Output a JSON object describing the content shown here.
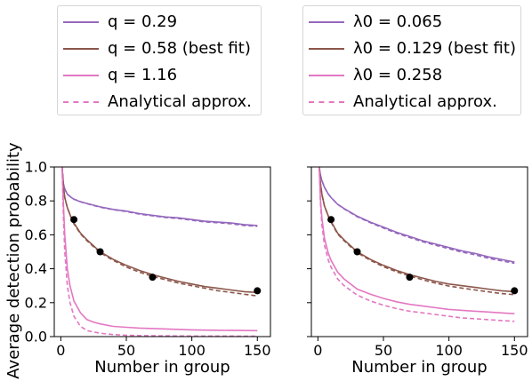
{
  "chart_data": [
    {
      "type": "line",
      "panel": "left",
      "xlabel": "Number in group",
      "ylabel": "Average detection probability",
      "xlim": [
        -5,
        160
      ],
      "ylim": [
        0,
        1.0
      ],
      "xticks": [
        0,
        50,
        100,
        150
      ],
      "yticks": [
        0.0,
        0.2,
        0.4,
        0.6,
        0.8,
        1.0
      ],
      "grid": false,
      "legend_placement": "above",
      "series": [
        {
          "name": "q = 0.29",
          "style": "solid",
          "color": "#9467bd",
          "x": [
            1,
            2,
            3,
            5,
            8,
            10,
            15,
            20,
            30,
            40,
            50,
            60,
            70,
            80,
            90,
            100,
            110,
            120,
            130,
            140,
            150
          ],
          "y": [
            1.0,
            0.9,
            0.87,
            0.84,
            0.82,
            0.81,
            0.795,
            0.785,
            0.765,
            0.75,
            0.74,
            0.725,
            0.715,
            0.705,
            0.7,
            0.69,
            0.68,
            0.675,
            0.67,
            0.66,
            0.655
          ]
        },
        {
          "name": "q = 0.58 (best fit)",
          "style": "solid",
          "color": "#8c564b",
          "x": [
            1,
            2,
            3,
            5,
            8,
            10,
            15,
            20,
            30,
            40,
            50,
            60,
            70,
            80,
            90,
            100,
            110,
            120,
            130,
            140,
            150
          ],
          "y": [
            1.0,
            0.88,
            0.82,
            0.76,
            0.7,
            0.67,
            0.61,
            0.57,
            0.5,
            0.455,
            0.42,
            0.39,
            0.365,
            0.345,
            0.325,
            0.31,
            0.295,
            0.285,
            0.275,
            0.265,
            0.26
          ]
        },
        {
          "name": "q = 1.16",
          "style": "solid",
          "color": "#e377c2",
          "x": [
            1,
            2,
            3,
            5,
            7,
            10,
            15,
            20,
            25,
            30,
            40,
            50,
            60,
            80,
            100,
            120,
            150
          ],
          "y": [
            1.0,
            0.78,
            0.6,
            0.4,
            0.3,
            0.21,
            0.14,
            0.1,
            0.085,
            0.075,
            0.06,
            0.055,
            0.05,
            0.045,
            0.04,
            0.037,
            0.035
          ]
        },
        {
          "name": "Analytical approx.",
          "style": "dashed",
          "color": "#9467bd",
          "legend": false,
          "x": [
            1,
            2,
            3,
            5,
            8,
            10,
            15,
            20,
            30,
            40,
            50,
            60,
            70,
            80,
            90,
            100,
            110,
            120,
            130,
            140,
            150
          ],
          "y": [
            1.0,
            0.9,
            0.87,
            0.84,
            0.82,
            0.81,
            0.795,
            0.783,
            0.763,
            0.748,
            0.737,
            0.722,
            0.712,
            0.702,
            0.696,
            0.686,
            0.676,
            0.671,
            0.665,
            0.655,
            0.65
          ]
        },
        {
          "name": "Analytical approx.",
          "style": "dashed",
          "color": "#8c564b",
          "legend": false,
          "x": [
            1,
            2,
            3,
            5,
            8,
            10,
            15,
            20,
            30,
            40,
            50,
            60,
            70,
            80,
            90,
            100,
            110,
            120,
            130,
            140,
            150
          ],
          "y": [
            1.0,
            0.88,
            0.82,
            0.76,
            0.7,
            0.665,
            0.605,
            0.565,
            0.495,
            0.45,
            0.41,
            0.38,
            0.355,
            0.335,
            0.315,
            0.3,
            0.285,
            0.27,
            0.26,
            0.25,
            0.24
          ]
        },
        {
          "name": "Analytical approx.",
          "style": "dashed",
          "color": "#e377c2",
          "legend": true,
          "x": [
            1,
            2,
            3,
            5,
            7,
            10,
            15,
            20,
            30,
            40,
            50,
            60,
            80,
            100,
            120,
            150
          ],
          "y": [
            1.0,
            0.7,
            0.5,
            0.3,
            0.2,
            0.12,
            0.06,
            0.035,
            0.02,
            0.012,
            0.008,
            0.006,
            0.004,
            0.003,
            0.003,
            0.002
          ]
        }
      ],
      "points": {
        "x": [
          10,
          30,
          70,
          150
        ],
        "y": [
          0.69,
          0.5,
          0.35,
          0.27
        ],
        "color": "#000000"
      }
    },
    {
      "type": "line",
      "panel": "right",
      "xlabel": "Number in group",
      "ylabel": "",
      "xlim": [
        -5,
        160
      ],
      "ylim": [
        0,
        1.0
      ],
      "xticks": [
        0,
        50,
        100,
        150
      ],
      "yticks": [
        0.0,
        0.2,
        0.4,
        0.6,
        0.8,
        1.0
      ],
      "ytick_labels": false,
      "grid": false,
      "legend_placement": "above",
      "series": [
        {
          "name": "λ0 = 0.065",
          "style": "solid",
          "color": "#9467bd",
          "x": [
            1,
            2,
            3,
            5,
            8,
            10,
            15,
            20,
            30,
            40,
            50,
            60,
            70,
            80,
            90,
            100,
            110,
            120,
            130,
            140,
            150
          ],
          "y": [
            1.0,
            0.95,
            0.92,
            0.88,
            0.84,
            0.82,
            0.78,
            0.755,
            0.71,
            0.675,
            0.645,
            0.615,
            0.59,
            0.565,
            0.545,
            0.525,
            0.505,
            0.49,
            0.47,
            0.455,
            0.44
          ]
        },
        {
          "name": "λ0 = 0.129 (best fit)",
          "style": "solid",
          "color": "#8c564b",
          "x": [
            1,
            2,
            3,
            5,
            8,
            10,
            15,
            20,
            30,
            40,
            50,
            60,
            70,
            80,
            90,
            100,
            110,
            120,
            130,
            140,
            150
          ],
          "y": [
            1.0,
            0.9,
            0.84,
            0.77,
            0.71,
            0.68,
            0.61,
            0.57,
            0.5,
            0.455,
            0.42,
            0.39,
            0.365,
            0.345,
            0.325,
            0.31,
            0.3,
            0.29,
            0.28,
            0.27,
            0.265
          ]
        },
        {
          "name": "λ0 = 0.258",
          "style": "solid",
          "color": "#e377c2",
          "x": [
            1,
            2,
            3,
            5,
            8,
            10,
            15,
            20,
            30,
            40,
            50,
            60,
            70,
            80,
            90,
            100,
            110,
            120,
            130,
            140,
            150
          ],
          "y": [
            1.0,
            0.8,
            0.7,
            0.58,
            0.49,
            0.45,
            0.38,
            0.34,
            0.28,
            0.25,
            0.225,
            0.205,
            0.19,
            0.18,
            0.17,
            0.16,
            0.155,
            0.15,
            0.145,
            0.14,
            0.135
          ]
        },
        {
          "name": "Analytical approx.",
          "style": "dashed",
          "color": "#9467bd",
          "legend": false,
          "x": [
            1,
            2,
            3,
            5,
            8,
            10,
            15,
            20,
            30,
            40,
            50,
            60,
            70,
            80,
            90,
            100,
            110,
            120,
            130,
            140,
            150
          ],
          "y": [
            1.0,
            0.95,
            0.92,
            0.88,
            0.84,
            0.82,
            0.78,
            0.753,
            0.707,
            0.671,
            0.64,
            0.61,
            0.584,
            0.559,
            0.538,
            0.518,
            0.498,
            0.482,
            0.462,
            0.447,
            0.432
          ]
        },
        {
          "name": "Analytical approx.",
          "style": "dashed",
          "color": "#8c564b",
          "legend": false,
          "x": [
            1,
            2,
            3,
            5,
            8,
            10,
            15,
            20,
            30,
            40,
            50,
            60,
            70,
            80,
            90,
            100,
            110,
            120,
            130,
            140,
            150
          ],
          "y": [
            1.0,
            0.9,
            0.84,
            0.77,
            0.71,
            0.675,
            0.605,
            0.565,
            0.495,
            0.45,
            0.412,
            0.382,
            0.357,
            0.335,
            0.315,
            0.298,
            0.286,
            0.275,
            0.264,
            0.254,
            0.247
          ]
        },
        {
          "name": "Analytical approx.",
          "style": "dashed",
          "color": "#e377c2",
          "legend": true,
          "x": [
            1,
            2,
            3,
            5,
            8,
            10,
            15,
            20,
            30,
            40,
            50,
            60,
            70,
            80,
            90,
            100,
            110,
            120,
            130,
            140,
            150
          ],
          "y": [
            1.0,
            0.78,
            0.66,
            0.54,
            0.45,
            0.41,
            0.34,
            0.3,
            0.245,
            0.21,
            0.185,
            0.165,
            0.15,
            0.14,
            0.13,
            0.12,
            0.11,
            0.105,
            0.1,
            0.095,
            0.09
          ]
        }
      ],
      "points": {
        "x": [
          10,
          30,
          70,
          150
        ],
        "y": [
          0.69,
          0.5,
          0.35,
          0.27
        ],
        "color": "#000000"
      }
    }
  ]
}
